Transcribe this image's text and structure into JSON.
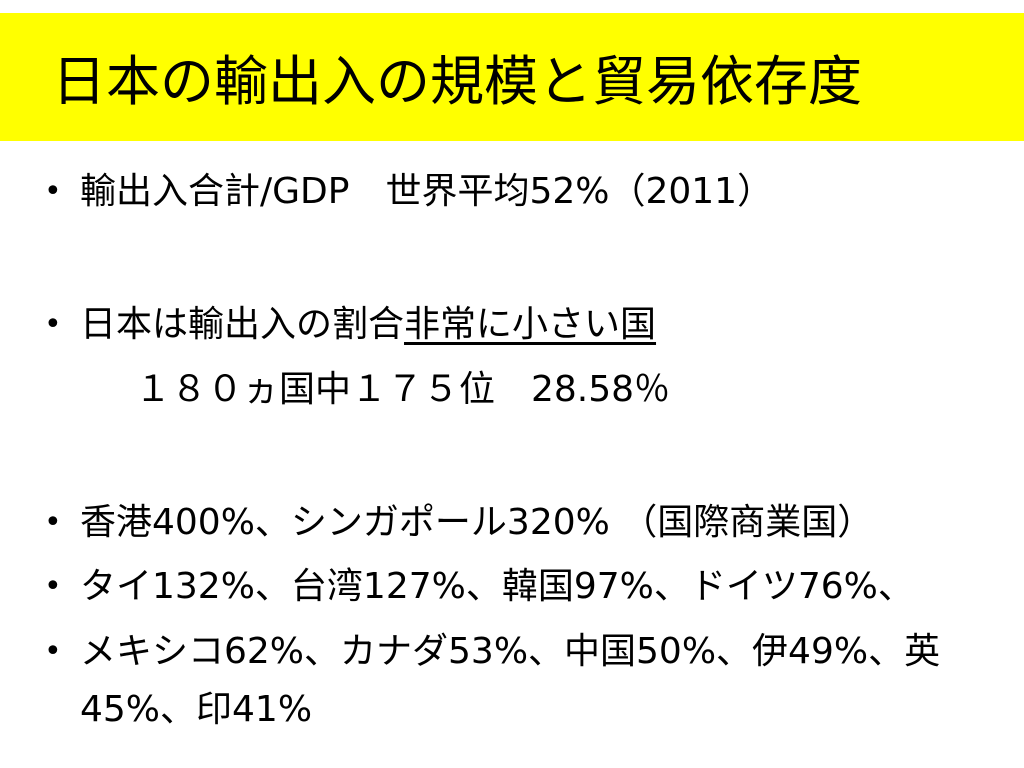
{
  "title": "日本の輸出入の規模と貿易依存度",
  "colors": {
    "title_background": "#ffff00",
    "text": "#000000"
  },
  "bullets": [
    {
      "text": "輸出入合計/GDP　世界平均52%（2011）"
    },
    {
      "text_plain": "日本は輸出入の割合",
      "text_underlined": "非常に小さい国"
    },
    {
      "text": "香港400%、シンガポール320% （国際商業国）"
    },
    {
      "text": "タイ132%、台湾127%、韓国97%、ドイツ76%、"
    },
    {
      "text_line1": "メキシコ62%、カナダ53%、中国50%、伊49%、英",
      "text_line2": "45%、印41%"
    }
  ],
  "rank_line": "１８０ヵ国中１７５位　28.58％",
  "bullet_symbol": "•"
}
